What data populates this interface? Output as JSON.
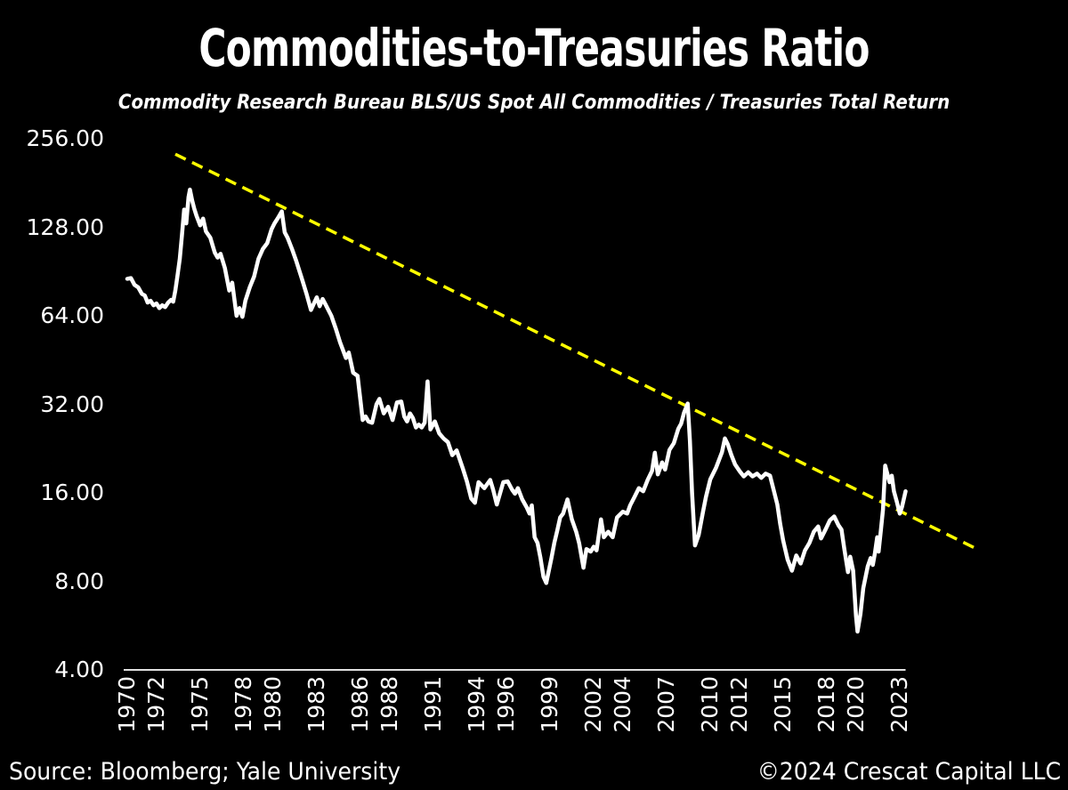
{
  "header": {
    "title": "Commodities-to-Treasuries Ratio",
    "subtitle": "Commodity Research Bureau BLS/US Spot All Commodities / Treasuries Total Return"
  },
  "footer": {
    "source": "Source: Bloomberg; Yale University",
    "copyright": "©2024 Crescat Capital LLC"
  },
  "colors": {
    "background": "#000000",
    "text": "#ffffff",
    "series": "#ffffff",
    "trendline": "#ffff00",
    "axis_line": "#e0e0e0"
  },
  "chart_data": {
    "type": "line",
    "title": "Commodities-to-Treasuries Ratio",
    "subtitle": "Commodity Research Bureau BLS/US Spot All Commodities / Treasuries Total Return",
    "grid": false,
    "legend": false,
    "y_axis": {
      "scale": "log2",
      "range": [
        4,
        256
      ],
      "ticks": [
        256,
        128,
        64,
        32,
        16,
        8,
        4
      ],
      "tick_labels": [
        "256.00",
        "128.00",
        "64.00",
        "32.00",
        "16.00",
        "8.00",
        "4.00"
      ]
    },
    "x_axis": {
      "range": [
        1970,
        2023.4
      ],
      "ticks": [
        1970,
        1972,
        1975,
        1978,
        1980,
        1983,
        1986,
        1988,
        1991,
        1994,
        1996,
        1999,
        2002,
        2004,
        2007,
        2010,
        2012,
        2015,
        2018,
        2020,
        2023
      ]
    },
    "series": [
      {
        "name": "CRB BLS/US Spot All Commodities / Treasuries Total Return",
        "color": "#ffffff",
        "points": [
          [
            1970.0,
            85.5
          ],
          [
            1970.25,
            86
          ],
          [
            1970.5,
            81.5
          ],
          [
            1970.75,
            80
          ],
          [
            1971.0,
            76
          ],
          [
            1971.2,
            75
          ],
          [
            1971.4,
            71
          ],
          [
            1971.6,
            72
          ],
          [
            1971.8,
            69.5
          ],
          [
            1972.0,
            70.5
          ],
          [
            1972.2,
            68
          ],
          [
            1972.4,
            69.5
          ],
          [
            1972.6,
            68.5
          ],
          [
            1972.8,
            71
          ],
          [
            1973.0,
            72.5
          ],
          [
            1973.15,
            71.5
          ],
          [
            1973.3,
            78
          ],
          [
            1973.45,
            88
          ],
          [
            1973.6,
            100
          ],
          [
            1973.75,
            120
          ],
          [
            1973.9,
            147
          ],
          [
            1974.05,
            132
          ],
          [
            1974.2,
            162
          ],
          [
            1974.3,
            172
          ],
          [
            1974.45,
            158
          ],
          [
            1974.6,
            148
          ],
          [
            1974.75,
            140
          ],
          [
            1975.0,
            130
          ],
          [
            1975.2,
            137
          ],
          [
            1975.4,
            124
          ],
          [
            1975.7,
            118
          ],
          [
            1976.0,
            105
          ],
          [
            1976.2,
            101
          ],
          [
            1976.4,
            104
          ],
          [
            1976.7,
            93
          ],
          [
            1977.0,
            78
          ],
          [
            1977.2,
            83
          ],
          [
            1977.5,
            64
          ],
          [
            1977.7,
            68
          ],
          [
            1977.9,
            63.5
          ],
          [
            1978.1,
            72
          ],
          [
            1978.4,
            80
          ],
          [
            1978.7,
            87
          ],
          [
            1979.0,
            100
          ],
          [
            1979.3,
            108
          ],
          [
            1979.6,
            113
          ],
          [
            1979.9,
            126
          ],
          [
            1980.1,
            132
          ],
          [
            1980.35,
            138
          ],
          [
            1980.6,
            145
          ],
          [
            1980.8,
            123
          ],
          [
            1981.0,
            118
          ],
          [
            1981.3,
            108
          ],
          [
            1981.6,
            98
          ],
          [
            1982.0,
            85
          ],
          [
            1982.3,
            76
          ],
          [
            1982.6,
            67
          ],
          [
            1983.0,
            74
          ],
          [
            1983.2,
            69
          ],
          [
            1983.4,
            73
          ],
          [
            1983.6,
            70
          ],
          [
            1984.0,
            64
          ],
          [
            1984.3,
            58
          ],
          [
            1984.6,
            52
          ],
          [
            1985.0,
            46
          ],
          [
            1985.2,
            48
          ],
          [
            1985.5,
            41
          ],
          [
            1985.8,
            40
          ],
          [
            1986.0,
            33
          ],
          [
            1986.15,
            28.3
          ],
          [
            1986.35,
            29.1
          ],
          [
            1986.55,
            28
          ],
          [
            1986.8,
            27.7
          ],
          [
            1987.1,
            32
          ],
          [
            1987.3,
            33.4
          ],
          [
            1987.6,
            29.8
          ],
          [
            1987.9,
            31.4
          ],
          [
            1988.2,
            28.3
          ],
          [
            1988.5,
            32.5
          ],
          [
            1988.8,
            32.7
          ],
          [
            1989.0,
            29.1
          ],
          [
            1989.2,
            28
          ],
          [
            1989.4,
            29.8
          ],
          [
            1989.6,
            28.7
          ],
          [
            1989.8,
            26.7
          ],
          [
            1990.0,
            27.3
          ],
          [
            1990.2,
            26.7
          ],
          [
            1990.4,
            27.7
          ],
          [
            1990.6,
            38.3
          ],
          [
            1990.8,
            26.3
          ],
          [
            1991.1,
            28
          ],
          [
            1991.4,
            25.5
          ],
          [
            1991.7,
            24.5
          ],
          [
            1992.0,
            23.8
          ],
          [
            1992.3,
            21.5
          ],
          [
            1992.6,
            22.3
          ],
          [
            1993.0,
            19.5
          ],
          [
            1993.3,
            17.5
          ],
          [
            1993.6,
            15.3
          ],
          [
            1993.85,
            14.8
          ],
          [
            1994.1,
            17.4
          ],
          [
            1994.5,
            16.6
          ],
          [
            1994.9,
            17.7
          ],
          [
            1995.1,
            16.4
          ],
          [
            1995.35,
            14.6
          ],
          [
            1995.8,
            17.4
          ],
          [
            1996.1,
            17.5
          ],
          [
            1996.4,
            16.4
          ],
          [
            1996.6,
            15.9
          ],
          [
            1996.8,
            16.6
          ],
          [
            1997.1,
            15.2
          ],
          [
            1997.4,
            14.3
          ],
          [
            1997.6,
            13.6
          ],
          [
            1997.75,
            14.5
          ],
          [
            1997.95,
            11.3
          ],
          [
            1998.15,
            10.8
          ],
          [
            1998.35,
            9.6
          ],
          [
            1998.55,
            8.3
          ],
          [
            1998.75,
            7.9
          ],
          [
            1999.1,
            9.6
          ],
          [
            1999.3,
            10.8
          ],
          [
            1999.5,
            11.9
          ],
          [
            1999.7,
            13.2
          ],
          [
            1999.9,
            13.6
          ],
          [
            2000.2,
            15.2
          ],
          [
            2000.5,
            13
          ],
          [
            2000.8,
            11.8
          ],
          [
            2001.0,
            10.8
          ],
          [
            2001.3,
            8.9
          ],
          [
            2001.5,
            10.3
          ],
          [
            2001.8,
            10.1
          ],
          [
            2002.0,
            10.5
          ],
          [
            2002.2,
            10.2
          ],
          [
            2002.5,
            13
          ],
          [
            2002.7,
            11.3
          ],
          [
            2003.0,
            11.8
          ],
          [
            2003.3,
            11.3
          ],
          [
            2003.6,
            13.2
          ],
          [
            2004.0,
            13.8
          ],
          [
            2004.3,
            13.6
          ],
          [
            2004.5,
            14.5
          ],
          [
            2004.8,
            15.5
          ],
          [
            2005.1,
            16.6
          ],
          [
            2005.4,
            16.2
          ],
          [
            2005.7,
            17.7
          ],
          [
            2006.0,
            19
          ],
          [
            2006.2,
            21.9
          ],
          [
            2006.4,
            18.5
          ],
          [
            2006.7,
            20.3
          ],
          [
            2006.9,
            19.2
          ],
          [
            2007.2,
            22.4
          ],
          [
            2007.5,
            23.6
          ],
          [
            2007.8,
            26.4
          ],
          [
            2008.0,
            27.5
          ],
          [
            2008.2,
            30
          ],
          [
            2008.45,
            32.2
          ],
          [
            2008.6,
            24
          ],
          [
            2008.75,
            16
          ],
          [
            2008.95,
            10.6
          ],
          [
            2009.2,
            11.5
          ],
          [
            2009.5,
            13.8
          ],
          [
            2009.7,
            15.5
          ],
          [
            2010.0,
            17.8
          ],
          [
            2010.4,
            19.5
          ],
          [
            2010.8,
            22
          ],
          [
            2011.0,
            24.5
          ],
          [
            2011.2,
            23.4
          ],
          [
            2011.45,
            21.5
          ],
          [
            2011.7,
            20
          ],
          [
            2012.0,
            19
          ],
          [
            2012.3,
            18.2
          ],
          [
            2012.6,
            18.8
          ],
          [
            2012.9,
            18.2
          ],
          [
            2013.2,
            18.6
          ],
          [
            2013.5,
            18
          ],
          [
            2013.8,
            18.6
          ],
          [
            2014.1,
            18.3
          ],
          [
            2014.4,
            16
          ],
          [
            2014.6,
            14.6
          ],
          [
            2014.8,
            12.5
          ],
          [
            2015.0,
            11
          ],
          [
            2015.3,
            9.5
          ],
          [
            2015.6,
            8.7
          ],
          [
            2015.9,
            9.8
          ],
          [
            2016.2,
            9.2
          ],
          [
            2016.5,
            10.2
          ],
          [
            2016.8,
            10.8
          ],
          [
            2017.1,
            11.8
          ],
          [
            2017.4,
            12.3
          ],
          [
            2017.6,
            11.2
          ],
          [
            2017.9,
            12
          ],
          [
            2018.2,
            12.9
          ],
          [
            2018.5,
            13.3
          ],
          [
            2018.8,
            12.4
          ],
          [
            2019.0,
            12
          ],
          [
            2019.2,
            10.3
          ],
          [
            2019.45,
            8.6
          ],
          [
            2019.6,
            9.7
          ],
          [
            2019.8,
            8.7
          ],
          [
            2020.0,
            6.1
          ],
          [
            2020.1,
            5.4
          ],
          [
            2020.3,
            6.2
          ],
          [
            2020.5,
            7.6
          ],
          [
            2020.8,
            9
          ],
          [
            2021.0,
            9.6
          ],
          [
            2021.15,
            9.1
          ],
          [
            2021.3,
            10
          ],
          [
            2021.45,
            11.3
          ],
          [
            2021.55,
            10.1
          ],
          [
            2021.7,
            11.9
          ],
          [
            2021.85,
            14
          ],
          [
            2022.0,
            19.8
          ],
          [
            2022.3,
            17.4
          ],
          [
            2022.45,
            18.3
          ],
          [
            2022.6,
            16.2
          ],
          [
            2022.8,
            14.9
          ],
          [
            2023.0,
            13.6
          ],
          [
            2023.15,
            14.3
          ],
          [
            2023.4,
            16.2
          ]
        ]
      }
    ],
    "trendline": {
      "name": "downtrend-resistance",
      "color": "#ffff00",
      "style": "dashed",
      "start": {
        "year": 1973.3,
        "value": 227
      },
      "end": {
        "year": 2028.3,
        "value": 10.3
      }
    }
  }
}
